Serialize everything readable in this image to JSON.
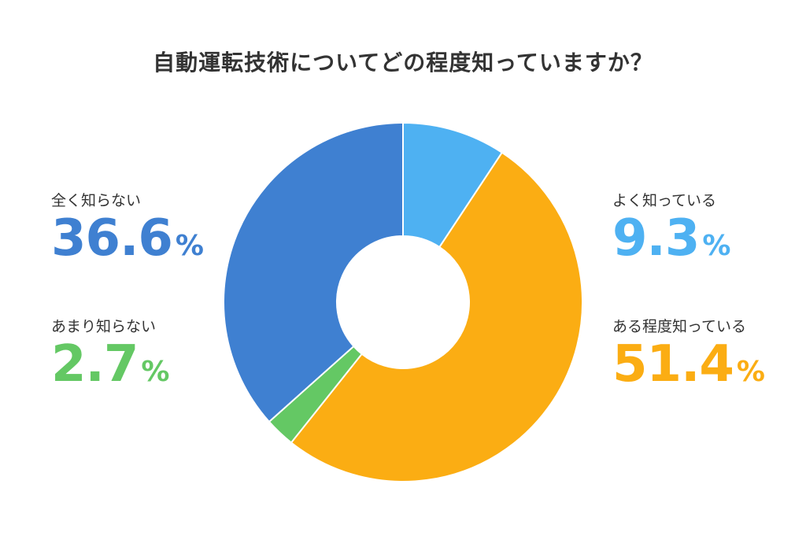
{
  "chart_data": {
    "type": "pie",
    "title": "自動運転技術についてどの程度知っていますか？",
    "categories": [
      "よく知っている",
      "ある程度知っている",
      "あまり知らない",
      "全く知らない"
    ],
    "values": [
      9.3,
      51.4,
      2.7,
      36.6
    ],
    "value_texts": [
      "9.3",
      "51.4",
      "2.7",
      "36.6"
    ],
    "unit": "%",
    "colors": [
      "#4EB1F2",
      "#FBAD13",
      "#64C864",
      "#3F80D1"
    ],
    "donut": true
  }
}
